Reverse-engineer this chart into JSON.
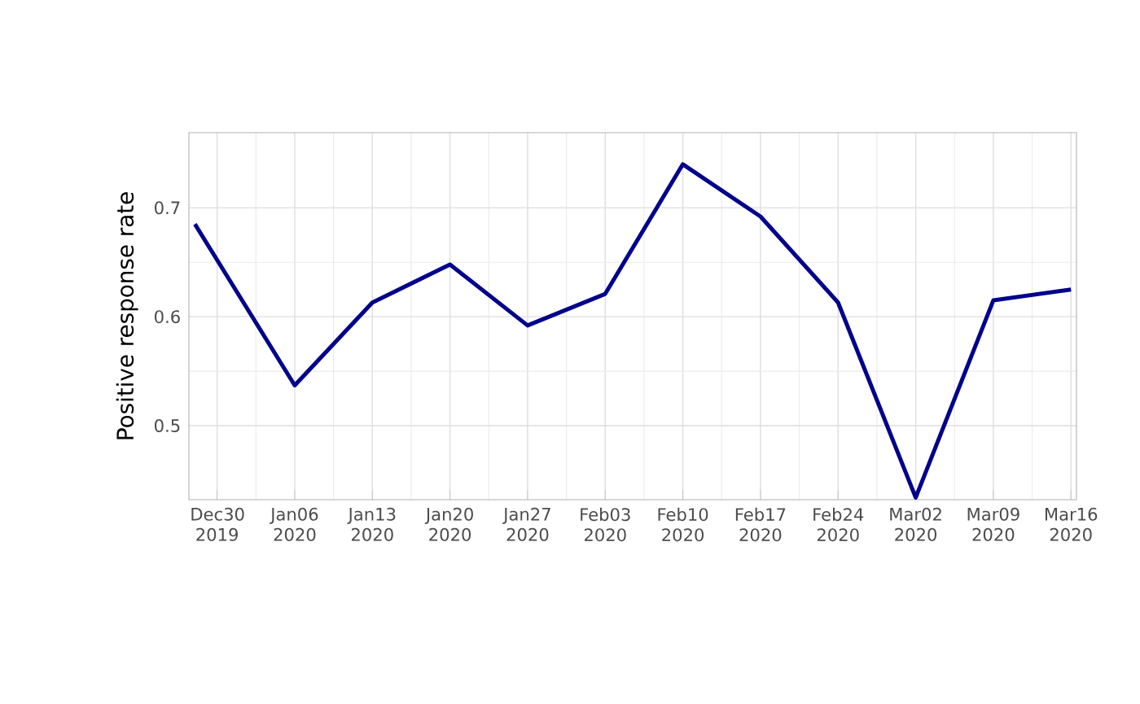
{
  "chart_data": {
    "type": "line",
    "ylabel": "Positive response rate",
    "x": [
      "2019-12-28",
      "2020-01-06",
      "2020-01-13",
      "2020-01-20",
      "2020-01-27",
      "2020-02-03",
      "2020-02-10",
      "2020-02-17",
      "2020-02-24",
      "2020-03-02",
      "2020-03-09",
      "2020-03-16"
    ],
    "series": [
      {
        "color": "#00008b",
        "values": [
          0.685,
          0.537,
          0.613,
          0.648,
          0.592,
          0.621,
          0.74,
          0.692,
          0.613,
          0.434,
          0.615,
          0.625
        ]
      }
    ],
    "xlim": [
      "2019-12-27T11:00",
      "2020-03-16T12:00"
    ],
    "xticks": [
      {
        "value": "2019-12-30",
        "label": "Dec30 2019"
      },
      {
        "value": "2020-01-06",
        "label": "Jan06 2020"
      },
      {
        "value": "2020-01-13",
        "label": "Jan13 2020"
      },
      {
        "value": "2020-01-20",
        "label": "Jan20 2020"
      },
      {
        "value": "2020-01-27",
        "label": "Jan27 2020"
      },
      {
        "value": "2020-02-03",
        "label": "Feb03 2020"
      },
      {
        "value": "2020-02-10",
        "label": "Feb10 2020"
      },
      {
        "value": "2020-02-17",
        "label": "Feb17 2020"
      },
      {
        "value": "2020-02-24",
        "label": "Feb24 2020"
      },
      {
        "value": "2020-03-02",
        "label": "Mar02 2020"
      },
      {
        "value": "2020-03-09",
        "label": "Mar09 2020"
      },
      {
        "value": "2020-03-16",
        "label": "Mar16 2020"
      }
    ],
    "ylim": [
      0.432,
      0.769
    ],
    "yticks": [
      0.5,
      0.6,
      0.7
    ],
    "grid": true,
    "marker": "none",
    "line_style": "solid"
  }
}
